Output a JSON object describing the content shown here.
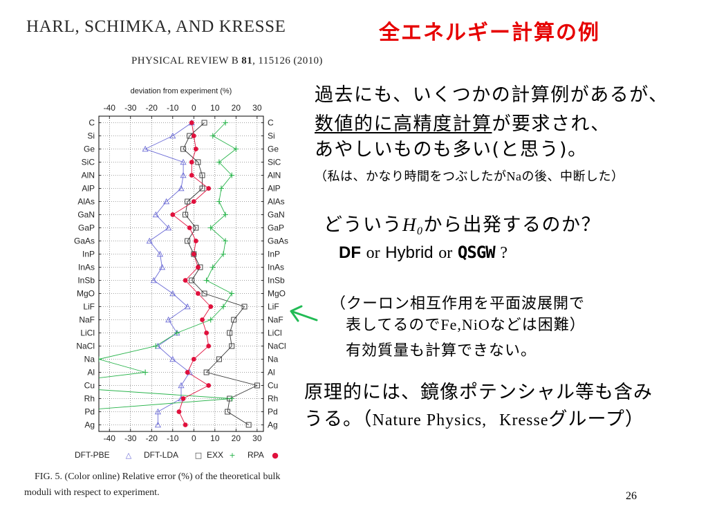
{
  "slide": {
    "title": "全エネルギー計算の例",
    "title_color": "#e60000",
    "page_number": "26"
  },
  "paper": {
    "authors": "HARL, SCHIMKA, AND KRESSE",
    "journal": "PHYSICAL REVIEW B",
    "volume": "81",
    "citation_rest": ", 115126 (2010)"
  },
  "figure": {
    "caption_line1": "FIG. 5. (Color online) Relative error (%) of the theoretical bulk",
    "caption_line2": "moduli with respect to experiment."
  },
  "notes": {
    "line1": "過去にも、いくつかの計算例があるが、",
    "line2_underlined": "数値的に高精度計算",
    "line2_rest": "が要求され、",
    "line3": "あやしいものも多い(と思う)。",
    "aside_a": "（私は、かなり時間をつぶしたが",
    "aside_na": "Na",
    "aside_b": "の後、中断した）",
    "question_a": "どういう",
    "question_h": "H",
    "question_sub": "0",
    "question_b": "から出発するのか？",
    "options": {
      "df": "DF",
      "or1": "or",
      "hybrid": "Hybrid",
      "or2": "or",
      "qsgw": "QSGW",
      "q": "?"
    },
    "arrow_color": "#22bb55",
    "remark_line1": "（クーロン相互作用を平面波展開で",
    "remark_line2_a": "表してるので",
    "remark_line2_b": "Fe,NiO",
    "remark_line2_c": "などは困難）",
    "remark_line3": "有効質量も計算できない。",
    "principle_line1": "原理的には、鏡像ポテンシャル等も含み",
    "principle_line2_a": "うる。（",
    "principle_line2_b": "Nature Physics,",
    "principle_line2_c": "Kresse",
    "principle_line2_d": "グループ）"
  },
  "chart_data": {
    "type": "line",
    "orientation": "horizontal",
    "xlabel": "deviation from experiment (%)",
    "xlim": [
      -45,
      33
    ],
    "xticks": [
      -40,
      -30,
      -20,
      -10,
      0,
      10,
      20,
      30
    ],
    "grid": true,
    "legend_position": "bottom",
    "categories": [
      "C",
      "Si",
      "Ge",
      "SiC",
      "AlN",
      "AlP",
      "AlAs",
      "GaN",
      "GaP",
      "GaAs",
      "InP",
      "InAs",
      "InSb",
      "MgO",
      "LiF",
      "NaF",
      "LiCl",
      "NaCl",
      "Na",
      "Al",
      "Cu",
      "Rh",
      "Pd",
      "Ag"
    ],
    "series": [
      {
        "name": "DFT-PBE",
        "legend_symbol": "△",
        "marker": "triangle",
        "color": "#6b6bd6",
        "values": [
          -1,
          -10,
          -23,
          -5,
          -5,
          -6,
          -13,
          -18,
          -12,
          -21,
          -16,
          -15,
          -19,
          -10,
          -3,
          -12,
          -8,
          -17,
          -10,
          -2,
          -6,
          -6,
          -17,
          -17
        ]
      },
      {
        "name": "DFT-LDA",
        "legend_symbol": "□",
        "marker": "square",
        "color": "#333333",
        "values": [
          5,
          -2,
          -5,
          2,
          4,
          4,
          -3,
          -4,
          1,
          -3,
          0,
          3,
          -1,
          5,
          24,
          19,
          17,
          18,
          12,
          6,
          30,
          17,
          16,
          26
        ]
      },
      {
        "name": "EXX",
        "legend_symbol": "+",
        "marker": "plus",
        "color": "#27b34a",
        "values": [
          15,
          9,
          20,
          12,
          18,
          13,
          12,
          15,
          8,
          15,
          14,
          9,
          6,
          18,
          14,
          8,
          -8,
          -18,
          -45,
          -23,
          -75,
          18,
          -62,
          null
        ]
      },
      {
        "name": "RPA",
        "legend_symbol": "●",
        "marker": "circle",
        "color": "#e0103c",
        "values": [
          -1,
          0,
          1,
          -1,
          -1,
          7,
          0,
          -10,
          -2,
          1,
          0,
          2,
          -4,
          2,
          8,
          4,
          6,
          7,
          0,
          -3,
          7,
          -5,
          -7,
          -4
        ]
      }
    ]
  }
}
